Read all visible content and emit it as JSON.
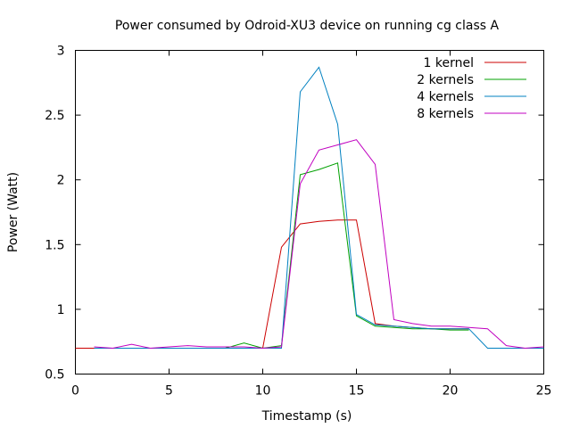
{
  "chart_data": {
    "type": "line",
    "title": "Power consumed by Odroid-XU3 device on running cg class A",
    "xlabel": "Timestamp (s)",
    "ylabel": "Power (Watt)",
    "xlim": [
      0,
      25
    ],
    "ylim": [
      0.5,
      3
    ],
    "xticks": [
      0,
      5,
      10,
      15,
      20,
      25
    ],
    "xtick_labels": [
      "0",
      "5",
      "10",
      "15",
      "20",
      "25"
    ],
    "yticks": [
      0.5,
      1,
      1.5,
      2,
      2.5,
      3
    ],
    "ytick_labels": [
      "0.5",
      "1",
      "1.5",
      "2",
      "2.5",
      "3"
    ],
    "grid": false,
    "legend_position": "top-right",
    "series": [
      {
        "name": "1 kernel",
        "color": "#cc0000",
        "x": [
          0,
          1,
          2,
          3,
          4,
          5,
          6,
          7,
          8,
          9,
          10,
          11,
          12,
          13,
          14,
          15,
          16,
          17,
          18,
          19,
          20,
          21
        ],
        "y": [
          0.7,
          0.7,
          0.7,
          0.7,
          0.7,
          0.7,
          0.7,
          0.7,
          0.7,
          0.7,
          0.7,
          1.48,
          1.66,
          1.68,
          1.69,
          1.69,
          0.89,
          0.87,
          0.86,
          0.85,
          0.85,
          0.85
        ]
      },
      {
        "name": "2 kernels",
        "color": "#00a000",
        "x": [
          1,
          2,
          3,
          4,
          5,
          6,
          7,
          8,
          9,
          10,
          11,
          12,
          13,
          14,
          15,
          16,
          17,
          18,
          19,
          20,
          21
        ],
        "y": [
          0.7,
          0.7,
          0.7,
          0.7,
          0.7,
          0.7,
          0.7,
          0.7,
          0.74,
          0.7,
          0.72,
          2.04,
          2.08,
          2.13,
          0.95,
          0.87,
          0.86,
          0.85,
          0.85,
          0.84,
          0.84
        ]
      },
      {
        "name": "4 kernels",
        "color": "#0080c0",
        "x": [
          1,
          2,
          3,
          4,
          5,
          6,
          7,
          8,
          9,
          10,
          11,
          12,
          13,
          14,
          15,
          16,
          17,
          18,
          19,
          20,
          21,
          22,
          23,
          24,
          25
        ],
        "y": [
          0.7,
          0.7,
          0.7,
          0.7,
          0.7,
          0.7,
          0.7,
          0.7,
          0.7,
          0.7,
          0.7,
          2.68,
          2.87,
          2.43,
          0.96,
          0.88,
          0.87,
          0.86,
          0.85,
          0.85,
          0.85,
          0.7,
          0.7,
          0.7,
          0.7
        ]
      },
      {
        "name": "8 kernels",
        "color": "#c000c0",
        "x": [
          1,
          2,
          3,
          4,
          5,
          6,
          7,
          8,
          9,
          10,
          11,
          12,
          13,
          14,
          15,
          16,
          17,
          18,
          19,
          20,
          21,
          22,
          23,
          24,
          25
        ],
        "y": [
          0.71,
          0.7,
          0.73,
          0.7,
          0.71,
          0.72,
          0.71,
          0.71,
          0.71,
          0.7,
          0.71,
          1.97,
          2.23,
          2.27,
          2.31,
          2.12,
          0.92,
          0.89,
          0.87,
          0.87,
          0.86,
          0.85,
          0.72,
          0.7,
          0.71
        ]
      }
    ]
  }
}
